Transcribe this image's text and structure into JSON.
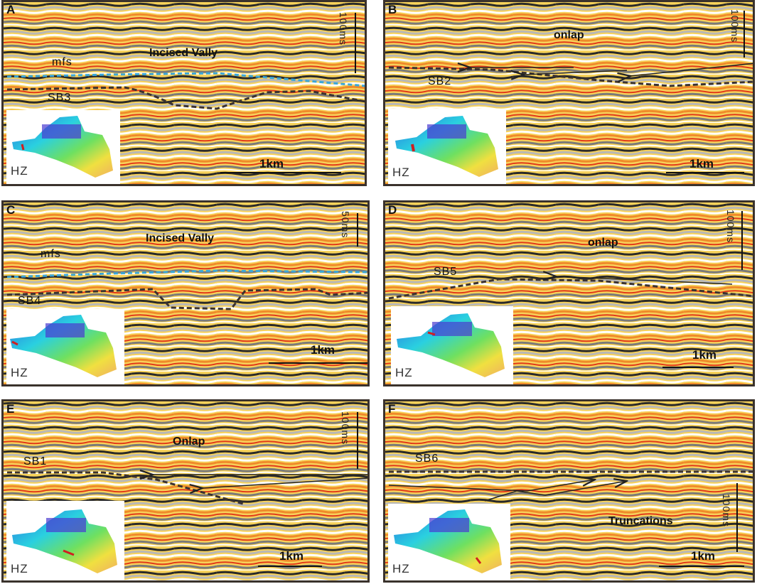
{
  "colors": {
    "frame": "#3a322c",
    "mfs_line": "#3aa6d8",
    "sb_line": "#3b3230",
    "arrow": "#222222"
  },
  "panels": {
    "A": {
      "label": "A",
      "title": "Incised Vally",
      "mfs": "mfs",
      "sb": "SB3",
      "hz": "HZ",
      "scale_h": "1km",
      "scale_v": "100ms"
    },
    "B": {
      "label": "B",
      "title": "onlap",
      "sb": "SB2",
      "hz": "HZ",
      "scale_h": "1km",
      "scale_v": "100ms"
    },
    "C": {
      "label": "C",
      "title": "Incised Vally",
      "mfs": "mfs",
      "sb": "SB4",
      "hz": "HZ",
      "scale_h": "1km",
      "scale_v": "50ms"
    },
    "D": {
      "label": "D",
      "title": "onlap",
      "sb": "SB5",
      "hz": "HZ",
      "scale_h": "1km",
      "scale_v": "100ms"
    },
    "E": {
      "label": "E",
      "title": "Onlap",
      "sb": "SB1",
      "hz": "HZ",
      "scale_h": "1km",
      "scale_v": "100ms"
    },
    "F": {
      "label": "F",
      "title": "Truncations",
      "sb": "SB6",
      "hz": "HZ",
      "scale_h": "1km",
      "scale_v": "100ms"
    }
  }
}
